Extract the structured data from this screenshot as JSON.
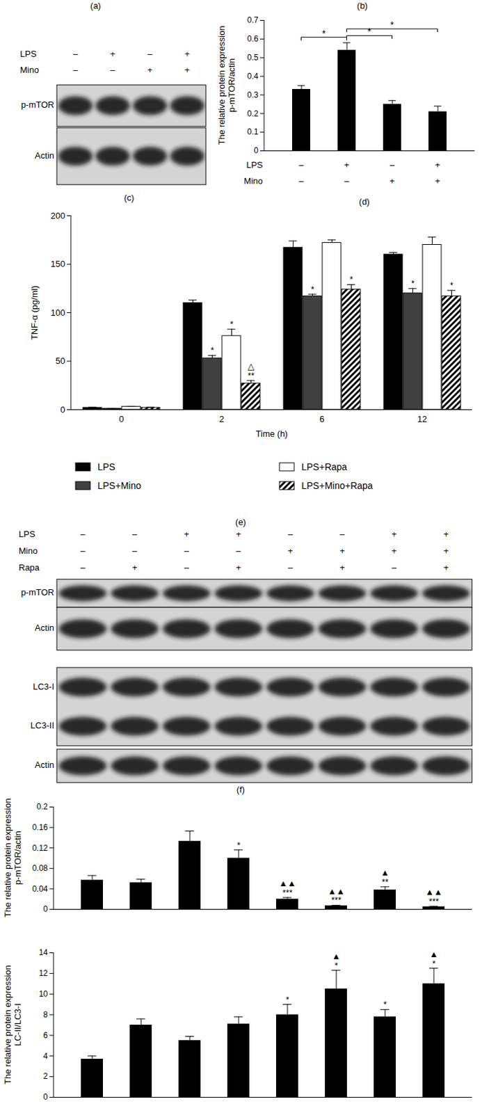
{
  "panel_labels": [
    "(a)",
    "(b)",
    "(c)",
    "(d)",
    "(e)",
    "(f)"
  ],
  "blots": [
    {
      "conditions": [
        {
          "name": "LPS",
          "signs": [
            "–",
            "+",
            "–",
            "+"
          ]
        },
        {
          "name": "Mino",
          "signs": [
            "–",
            "–",
            "+",
            "+"
          ]
        }
      ],
      "boxes": [
        [
          "p-mTOR"
        ],
        [
          "Actin"
        ]
      ]
    },
    {
      "conditions": [
        {
          "name": "LPS",
          "signs": [
            "–",
            "–",
            "+",
            "+",
            "–",
            "–",
            "+",
            "+"
          ]
        },
        {
          "name": "Mino",
          "signs": [
            "–",
            "–",
            "–",
            "–",
            "+",
            "+",
            "+",
            "+"
          ]
        },
        {
          "name": "Rapa",
          "signs": [
            "–",
            "+",
            "–",
            "+",
            "–",
            "+",
            "–",
            "+"
          ]
        }
      ],
      "boxes": [
        [
          "p-mTOR"
        ],
        [
          "Actin"
        ],
        [
          "LC3-I",
          "LC3-II"
        ],
        [
          "Actin"
        ]
      ]
    }
  ],
  "chart_data": [
    {
      "type": "bar",
      "categories": [
        null,
        null,
        null,
        null
      ],
      "values": [
        0.33,
        0.54,
        0.25,
        0.21
      ],
      "errors": [
        0.02,
        0.04,
        0.02,
        0.03
      ],
      "color": "#000000",
      "ylabel": "The relative protein expression\np-mTOR/actin",
      "ylim": [
        0,
        0.7
      ],
      "yticks": [
        0,
        0.1,
        0.2,
        0.3,
        0.4,
        0.5,
        0.6,
        0.7
      ],
      "conditions": [
        {
          "name": "LPS",
          "signs": [
            "–",
            "+",
            "–",
            "+"
          ]
        },
        {
          "name": "Mino",
          "signs": [
            "–",
            "–",
            "+",
            "+"
          ]
        }
      ],
      "comparisons": [
        {
          "from": 0,
          "to": 1,
          "label": "*"
        },
        {
          "from": 1,
          "to": 2,
          "label": "*"
        },
        {
          "from": 1,
          "to": 3,
          "label": "*"
        }
      ]
    },
    {
      "type": "bar",
      "categories": [
        "0",
        "2",
        "6",
        "12"
      ],
      "xlabel": "Time (h)",
      "ylabel": "TNF-α (pg/ml)",
      "ylim": [
        0,
        200
      ],
      "yticks": [
        0,
        50,
        100,
        150,
        200
      ],
      "legend": "bottom",
      "series": [
        {
          "name": "LPS",
          "color": "#000000",
          "values": [
            2,
            110,
            167,
            160
          ],
          "errors": [
            0.5,
            3,
            7,
            2
          ],
          "annotations": [
            null,
            null,
            null,
            null
          ]
        },
        {
          "name": "LPS+Mino",
          "color": "#404040",
          "values": [
            1,
            53,
            117,
            120
          ],
          "errors": [
            0.5,
            3,
            2,
            5
          ],
          "annotations": [
            null,
            "*",
            "*",
            "*"
          ]
        },
        {
          "name": "LPS+Rapa",
          "color": "#ffffff",
          "values": [
            3,
            76,
            172,
            170
          ],
          "errors": [
            0.5,
            7,
            3,
            8
          ],
          "annotations": [
            null,
            "*",
            null,
            null
          ]
        },
        {
          "name": "LPS+Mino+Rapa",
          "color": "#000000",
          "marker": "hatched",
          "values": [
            2,
            27,
            124,
            117
          ],
          "errors": [
            0.5,
            3,
            5,
            6
          ],
          "annotations": [
            null,
            "△\n**",
            "*",
            "*"
          ]
        }
      ]
    },
    {
      "type": "bar",
      "categories": [
        null,
        null,
        null,
        null,
        null,
        null,
        null,
        null
      ],
      "values": [
        0.057,
        0.052,
        0.133,
        0.1,
        0.02,
        0.007,
        0.038,
        0.005
      ],
      "errors": [
        0.009,
        0.007,
        0.02,
        0.016,
        0.003,
        0.001,
        0.006,
        0.001
      ],
      "annotations": [
        null,
        null,
        null,
        "*",
        "▲▲\n***",
        "▲▲\n***",
        "▲\n**",
        "▲▲\n***"
      ],
      "color": "#000000",
      "ylabel": "The relative protein expression\np-mTOR/actin",
      "ylim": [
        0,
        0.2
      ],
      "yticks": [
        0,
        0.04,
        0.08,
        0.12,
        0.16,
        0.2
      ]
    },
    {
      "type": "bar",
      "categories": [
        null,
        null,
        null,
        null,
        null,
        null,
        null,
        null
      ],
      "values": [
        3.7,
        7.0,
        5.5,
        7.1,
        8.0,
        10.5,
        7.8,
        11.0
      ],
      "errors": [
        0.3,
        0.6,
        0.4,
        0.7,
        1.0,
        1.8,
        0.7,
        1.5
      ],
      "annotations": [
        null,
        null,
        null,
        null,
        "*",
        "▲\n*",
        "*",
        "▲\n*"
      ],
      "color": "#000000",
      "ylabel": "The relative protein expression\nLC-II/LC3-I",
      "ylim": [
        0,
        14
      ],
      "yticks": [
        0,
        2,
        4,
        6,
        8,
        10,
        12,
        14
      ]
    }
  ]
}
